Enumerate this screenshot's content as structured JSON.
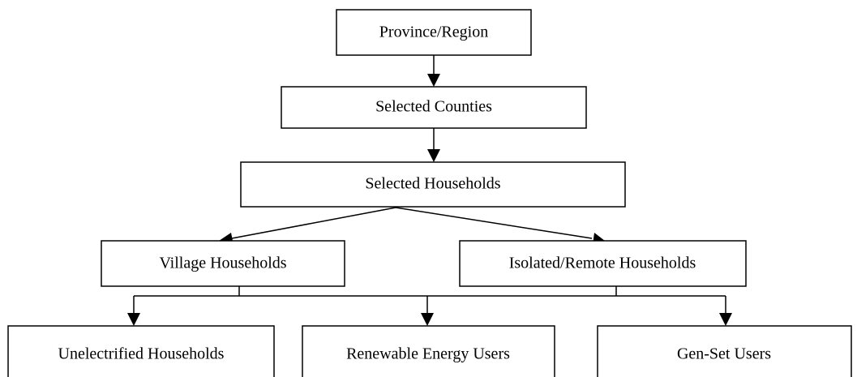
{
  "nodes": [
    {
      "label": "Province/Region"
    },
    {
      "label": "Selected Counties"
    },
    {
      "label": "Selected Households"
    },
    {
      "label": "Village Households"
    },
    {
      "label": "Isolated/Remote Households"
    },
    {
      "label": "Unelectrified Households"
    },
    {
      "label": "Renewable Energy Users"
    },
    {
      "label": "Gen-Set Users"
    }
  ]
}
